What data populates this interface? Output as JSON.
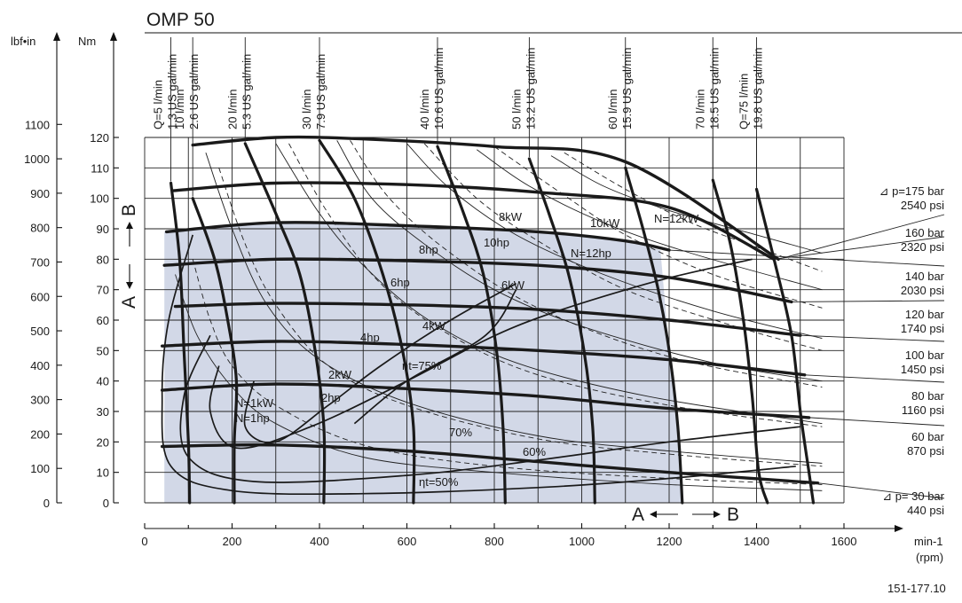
{
  "chart_data": {
    "type": "line",
    "title": "OMP 50",
    "figure_id": "151-177.10",
    "xlabel": "min-1",
    "xlabel_unit": "(rpm)",
    "ylabel_left": "lbf•in",
    "ylabel_nm": "Nm",
    "xlim": [
      0,
      1600
    ],
    "ylim": [
      0,
      120
    ],
    "x_ticks": [
      "0",
      "200",
      "400",
      "600",
      "800",
      "1000",
      "1200",
      "1400",
      "1600"
    ],
    "y_ticks_nm": [
      "0",
      "10",
      "20",
      "30",
      "40",
      "50",
      "60",
      "70",
      "80",
      "90",
      "100",
      "110",
      "120"
    ],
    "y_ticks_lbf": [
      {
        "value": 0,
        "label": "0"
      },
      {
        "value": 100,
        "label": "100"
      },
      {
        "value": 200,
        "label": "200"
      },
      {
        "value": 300,
        "label": "300"
      },
      {
        "value": 400,
        "label": "400"
      },
      {
        "value": 500,
        "label": "500"
      },
      {
        "value": 600,
        "label": "600"
      },
      {
        "value": 700,
        "label": "700"
      },
      {
        "value": 800,
        "label": "800"
      },
      {
        "value": 900,
        "label": "900"
      },
      {
        "value": 1000,
        "label": "1000"
      },
      {
        "value": 1100,
        "label": "1100"
      }
    ],
    "rotation_labels": {
      "a_left": "A",
      "b_left": "B",
      "a_bottom": "A",
      "b_bottom": "B"
    },
    "pressure_curves": [
      {
        "label1": "⊿ p=175 bar",
        "label2": "2540 psi",
        "points": [
          [
            110,
            117.5
          ],
          [
            300,
            120
          ],
          [
            500,
            119.5
          ],
          [
            800,
            117
          ],
          [
            1100,
            112
          ],
          [
            1450,
            80
          ]
        ]
      },
      {
        "label1": "160 bar",
        "label2": "2320 psi",
        "points": [
          [
            65,
            102.5
          ],
          [
            300,
            105
          ],
          [
            600,
            104.5
          ],
          [
            900,
            102
          ],
          [
            1200,
            97
          ],
          [
            1440,
            80
          ]
        ]
      },
      {
        "label1": "140 bar",
        "label2": "2030 psi",
        "points": [
          [
            50,
            89
          ],
          [
            300,
            92
          ],
          [
            600,
            91
          ],
          [
            900,
            89
          ],
          [
            1100,
            86
          ],
          [
            1200,
            83
          ]
        ]
      },
      {
        "label1": "120 bar",
        "label2": "1740 psi",
        "points": [
          [
            45,
            78
          ],
          [
            300,
            80
          ],
          [
            600,
            79.5
          ],
          [
            900,
            78
          ],
          [
            1200,
            74
          ],
          [
            1480,
            66
          ]
        ]
      },
      {
        "label1": "100 bar",
        "label2": "1450 psi",
        "points": [
          [
            70,
            64.5
          ],
          [
            300,
            65.5
          ],
          [
            600,
            65
          ],
          [
            900,
            63.5
          ],
          [
            1200,
            60
          ],
          [
            1500,
            55
          ]
        ]
      },
      {
        "label1": "80 bar",
        "label2": "1160 psi",
        "points": [
          [
            40,
            51.5
          ],
          [
            300,
            53
          ],
          [
            600,
            52
          ],
          [
            900,
            50
          ],
          [
            1200,
            47
          ],
          [
            1510,
            42
          ]
        ]
      },
      {
        "label1": "60 bar",
        "label2": "870 psi",
        "points": [
          [
            40,
            37
          ],
          [
            300,
            39
          ],
          [
            600,
            37.5
          ],
          [
            900,
            35
          ],
          [
            1200,
            31
          ],
          [
            1520,
            28
          ]
        ]
      },
      {
        "label1": "⊿ p= 30 bar",
        "label2": "440 psi",
        "points": [
          [
            40,
            18.5
          ],
          [
            300,
            19
          ],
          [
            600,
            17
          ],
          [
            900,
            13.5
          ],
          [
            1200,
            10
          ],
          [
            1540,
            6.5
          ]
        ]
      }
    ],
    "flow_curves": [
      {
        "label1": "Q=5 l/min",
        "label2": "1.3 US gal/min",
        "points": [
          [
            60,
            105
          ],
          [
            80,
            80
          ],
          [
            90,
            50
          ],
          [
            100,
            20
          ],
          [
            103,
            0
          ]
        ]
      },
      {
        "label1": "10 l/min",
        "label2": "2.6 US gal/min",
        "points": [
          [
            110,
            100
          ],
          [
            160,
            80
          ],
          [
            190,
            60
          ],
          [
            210,
            40
          ],
          [
            205,
            20
          ],
          [
            205,
            0
          ]
        ]
      },
      {
        "label1": "20 l/min",
        "label2": "5.3 US gal/min",
        "points": [
          [
            230,
            118
          ],
          [
            300,
            95
          ],
          [
            355,
            75
          ],
          [
            390,
            50
          ],
          [
            410,
            25
          ],
          [
            410,
            0
          ]
        ]
      },
      {
        "label1": "30 l/min",
        "label2": "7.9 US gal/min",
        "points": [
          [
            400,
            119
          ],
          [
            480,
            100
          ],
          [
            545,
            75
          ],
          [
            590,
            50
          ],
          [
            615,
            25
          ],
          [
            615,
            0
          ]
        ]
      },
      {
        "label1": "40 l/min",
        "label2": "10.6 US gal/min",
        "points": [
          [
            670,
            117
          ],
          [
            730,
            95
          ],
          [
            775,
            75
          ],
          [
            805,
            50
          ],
          [
            820,
            25
          ],
          [
            825,
            0
          ]
        ]
      },
      {
        "label1": "50 l/min",
        "label2": "13.2 US gal/min",
        "points": [
          [
            880,
            113
          ],
          [
            925,
            95
          ],
          [
            970,
            75
          ],
          [
            1005,
            50
          ],
          [
            1025,
            25
          ],
          [
            1030,
            0
          ]
        ]
      },
      {
        "label1": "60 l/min",
        "label2": "15.9 US gal/min",
        "points": [
          [
            1100,
            110
          ],
          [
            1140,
            90
          ],
          [
            1175,
            70
          ],
          [
            1200,
            50
          ],
          [
            1220,
            25
          ],
          [
            1230,
            0
          ]
        ]
      },
      {
        "label1": "70 l/min",
        "label2": "18.5 US gal/min",
        "points": [
          [
            1300,
            106
          ],
          [
            1340,
            85
          ],
          [
            1370,
            60
          ],
          [
            1390,
            35
          ],
          [
            1405,
            10
          ],
          [
            1425,
            0
          ]
        ]
      },
      {
        "label1": "Q=75 l/min",
        "label2": "19.8 US gal/min",
        "points": [
          [
            1400,
            103
          ],
          [
            1440,
            80
          ],
          [
            1480,
            55
          ],
          [
            1500,
            30
          ],
          [
            1520,
            10
          ],
          [
            1530,
            0
          ]
        ]
      }
    ],
    "power_kw": [
      {
        "label": "N=1kW",
        "points": [
          [
            110,
            80
          ],
          [
            150,
            60
          ],
          [
            200,
            45
          ],
          [
            300,
            32
          ],
          [
            500,
            19
          ],
          [
            800,
            12
          ],
          [
            1200,
            8
          ],
          [
            1550,
            6
          ]
        ]
      },
      {
        "label": "2kW",
        "points": [
          [
            170,
            110
          ],
          [
            230,
            85
          ],
          [
            300,
            65
          ],
          [
            420,
            45
          ],
          [
            600,
            32
          ],
          [
            900,
            21
          ],
          [
            1200,
            16
          ],
          [
            1550,
            12
          ]
        ]
      },
      {
        "label": "4kW",
        "points": [
          [
            330,
            118
          ],
          [
            420,
            95
          ],
          [
            540,
            72
          ],
          [
            700,
            55
          ],
          [
            900,
            42
          ],
          [
            1200,
            32
          ],
          [
            1550,
            25
          ]
        ]
      },
      {
        "label": "6kW",
        "points": [
          [
            470,
            119
          ],
          [
            560,
            100
          ],
          [
            700,
            82
          ],
          [
            900,
            64
          ],
          [
            1200,
            48
          ],
          [
            1550,
            38
          ]
        ]
      },
      {
        "label": "8kW",
        "points": [
          [
            640,
            118
          ],
          [
            760,
            100
          ],
          [
            900,
            86
          ],
          [
            1100,
            70
          ],
          [
            1350,
            58
          ],
          [
            1550,
            50
          ]
        ]
      },
      {
        "label": "10kW",
        "points": [
          [
            800,
            117
          ],
          [
            950,
            102
          ],
          [
            1100,
            88
          ],
          [
            1300,
            75
          ],
          [
            1550,
            64
          ]
        ]
      },
      {
        "label": "N=12kW",
        "points": [
          [
            960,
            115
          ],
          [
            1100,
            103
          ],
          [
            1250,
            92
          ],
          [
            1400,
            84
          ],
          [
            1550,
            76
          ]
        ]
      }
    ],
    "power_hp": [
      {
        "label": "N=1hp",
        "points": [
          [
            70,
            75
          ],
          [
            120,
            55
          ],
          [
            200,
            38
          ],
          [
            300,
            26
          ],
          [
            500,
            15
          ],
          [
            800,
            10
          ],
          [
            1200,
            6
          ],
          [
            1550,
            4
          ]
        ]
      },
      {
        "label": "2hp",
        "points": [
          [
            140,
            115
          ],
          [
            200,
            90
          ],
          [
            280,
            65
          ],
          [
            400,
            47
          ],
          [
            600,
            33
          ],
          [
            900,
            22
          ],
          [
            1200,
            17
          ],
          [
            1550,
            13
          ]
        ]
      },
      {
        "label": "4hp",
        "points": [
          [
            300,
            118
          ],
          [
            400,
            95
          ],
          [
            500,
            78
          ],
          [
            650,
            60
          ],
          [
            850,
            46
          ],
          [
            1150,
            35
          ],
          [
            1550,
            26
          ]
        ]
      },
      {
        "label": "6hp",
        "points": [
          [
            440,
            119
          ],
          [
            520,
            100
          ],
          [
            640,
            85
          ],
          [
            800,
            70
          ],
          [
            1000,
            58
          ],
          [
            1300,
            46
          ],
          [
            1550,
            40
          ]
        ]
      },
      {
        "label": "8hp",
        "points": [
          [
            600,
            118
          ],
          [
            700,
            103
          ],
          [
            850,
            88
          ],
          [
            1050,
            75
          ],
          [
            1300,
            63
          ],
          [
            1550,
            54
          ]
        ]
      },
      {
        "label": "10hp",
        "points": [
          [
            760,
            116
          ],
          [
            880,
            104
          ],
          [
            1050,
            92
          ],
          [
            1250,
            82
          ],
          [
            1550,
            70
          ]
        ]
      },
      {
        "label": "N=12hp",
        "points": [
          [
            930,
            114
          ],
          [
            1050,
            104
          ],
          [
            1200,
            96
          ],
          [
            1400,
            88
          ],
          [
            1550,
            82
          ]
        ]
      }
    ],
    "efficiency": [
      {
        "label": "ηt=50%",
        "points": [
          [
            110,
            88
          ],
          [
            55,
            60
          ],
          [
            40,
            35
          ],
          [
            60,
            12
          ],
          [
            200,
            4
          ],
          [
            500,
            3
          ],
          [
            900,
            5
          ],
          [
            1200,
            8
          ],
          [
            1490,
            12
          ]
        ]
      },
      {
        "label": "60%",
        "points": [
          [
            150,
            55
          ],
          [
            90,
            35
          ],
          [
            100,
            15
          ],
          [
            250,
            7
          ],
          [
            600,
            9
          ],
          [
            900,
            14
          ],
          [
            1200,
            20
          ],
          [
            1500,
            25
          ]
        ]
      },
      {
        "label": "70%",
        "points": [
          [
            170,
            45
          ],
          [
            150,
            30
          ],
          [
            210,
            18
          ],
          [
            380,
            25
          ],
          [
            600,
            40
          ],
          [
            850,
            58
          ],
          [
            1150,
            72
          ],
          [
            1390,
            80
          ]
        ]
      },
      {
        "label": "ηt=75%",
        "points": [
          [
            250,
            40
          ],
          [
            230,
            25
          ],
          [
            300,
            20
          ],
          [
            420,
            32
          ],
          [
            540,
            45
          ],
          [
            700,
            60
          ],
          [
            850,
            72
          ]
        ]
      },
      {
        "label": "",
        "points": [
          [
            480,
            26
          ],
          [
            600,
            40
          ],
          [
            780,
            55
          ],
          [
            850,
            70
          ]
        ]
      }
    ]
  }
}
